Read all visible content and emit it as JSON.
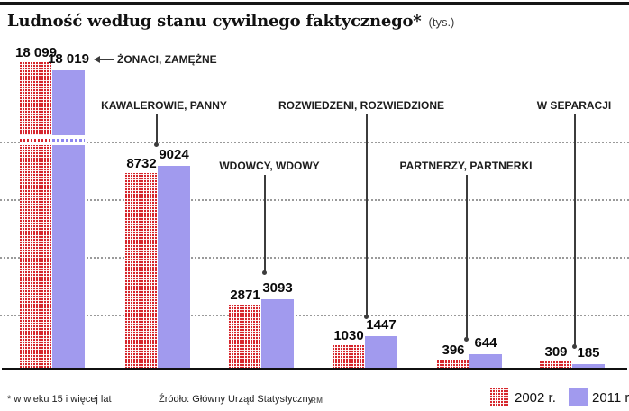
{
  "header": {
    "title": "Ludność według stanu cywilnego faktycznego*",
    "unit_note": "(tys.)"
  },
  "chart_data": {
    "type": "bar",
    "title": "Ludność według stanu cywilnego faktycznego*",
    "unit": "tys.",
    "categories": [
      "ŻONACI, ZAMĘŻNE",
      "KAWALEROWIE, PANNY",
      "WDOWCY, WDOWY",
      "ROZWIEDZENI, ROZWIEDZIONE",
      "PARTNERZY, PARTNERKI",
      "W SEPARACJI"
    ],
    "series": [
      {
        "name": "2002 r.",
        "values": [
          18099,
          8732,
          2871,
          1030,
          396,
          309
        ]
      },
      {
        "name": "2011 r.",
        "values": [
          18019,
          9024,
          3093,
          1447,
          644,
          185
        ]
      }
    ],
    "value_labels": [
      [
        "18 099",
        "8732",
        "2871",
        "1030",
        "396",
        "309"
      ],
      [
        "18 019",
        "9024",
        "3093",
        "1447",
        "644",
        "185"
      ]
    ],
    "axis_break_on_first_pair": true,
    "grid": "horizontal-dotted",
    "colors": {
      "series_2002": "#d6262c",
      "series_2011": "#a19aee"
    }
  },
  "legend": {
    "items": [
      {
        "label": "2002 r.",
        "swatch": "red-dotted-pattern"
      },
      {
        "label": "2011 r.",
        "swatch": "purple-solid"
      }
    ]
  },
  "footer": {
    "footnote": "* w wieku 15 i więcej lat",
    "source": "Źródło: Główny Urząd Statystyczny",
    "credit": "RM"
  }
}
